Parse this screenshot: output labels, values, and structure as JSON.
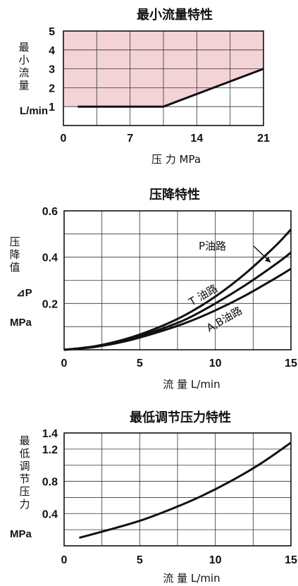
{
  "chart_data": [
    {
      "type": "line",
      "title": "最小流量特性",
      "ylabel": "最小流量",
      "yunit": "L/min",
      "xlabel": "压 力 MPa",
      "xlim": [
        0,
        21
      ],
      "ylim": [
        0,
        5
      ],
      "xticks": [
        0,
        7,
        14,
        21
      ],
      "yticks": [
        1,
        2,
        3,
        4,
        5
      ],
      "grid": true,
      "shaded_region": "above curve",
      "shade_color": "#f3d3d6",
      "series": [
        {
          "x": [
            1.5,
            10.5,
            21
          ],
          "y": [
            1,
            1,
            3
          ]
        }
      ]
    },
    {
      "type": "line",
      "title": "压降特性",
      "ylabel": "压降值",
      "ylabel_symbol": "⊿P",
      "yunit": "MPa",
      "xlabel": "流 量 L/min",
      "xlim": [
        0,
        15
      ],
      "ylim": [
        0,
        0.6
      ],
      "xticks": [
        0,
        5,
        10,
        15
      ],
      "yticks": [
        0.2,
        0.4,
        0.6
      ],
      "grid": true,
      "series": [
        {
          "name": "P油路",
          "x": [
            0,
            2,
            4,
            6,
            8,
            10,
            12,
            14,
            15
          ],
          "y": [
            0,
            0.015,
            0.045,
            0.09,
            0.15,
            0.23,
            0.33,
            0.45,
            0.52
          ]
        },
        {
          "name": "T 油路",
          "x": [
            0,
            2,
            4,
            6,
            8,
            10,
            12,
            14,
            15
          ],
          "y": [
            0,
            0.013,
            0.04,
            0.08,
            0.13,
            0.2,
            0.28,
            0.37,
            0.42
          ]
        },
        {
          "name": "A,B油路",
          "x": [
            0,
            2,
            4,
            6,
            8,
            10,
            12,
            14,
            15
          ],
          "y": [
            0,
            0.012,
            0.036,
            0.072,
            0.115,
            0.17,
            0.235,
            0.31,
            0.35
          ]
        }
      ]
    },
    {
      "type": "line",
      "title": "最低调节压力特性",
      "ylabel": "最低调节压力",
      "yunit": "MPa",
      "xlabel": "流 量 L/min",
      "xlim": [
        0,
        15
      ],
      "ylim": [
        0,
        1.4
      ],
      "xticks": [
        0,
        5,
        10,
        15
      ],
      "yticks": [
        0.4,
        0.8,
        1.2,
        1.4
      ],
      "grid": true,
      "series": [
        {
          "x": [
            1,
            3,
            5,
            7,
            9,
            11,
            13,
            15
          ],
          "y": [
            0.1,
            0.2,
            0.31,
            0.45,
            0.61,
            0.8,
            1.02,
            1.28
          ]
        }
      ]
    }
  ]
}
